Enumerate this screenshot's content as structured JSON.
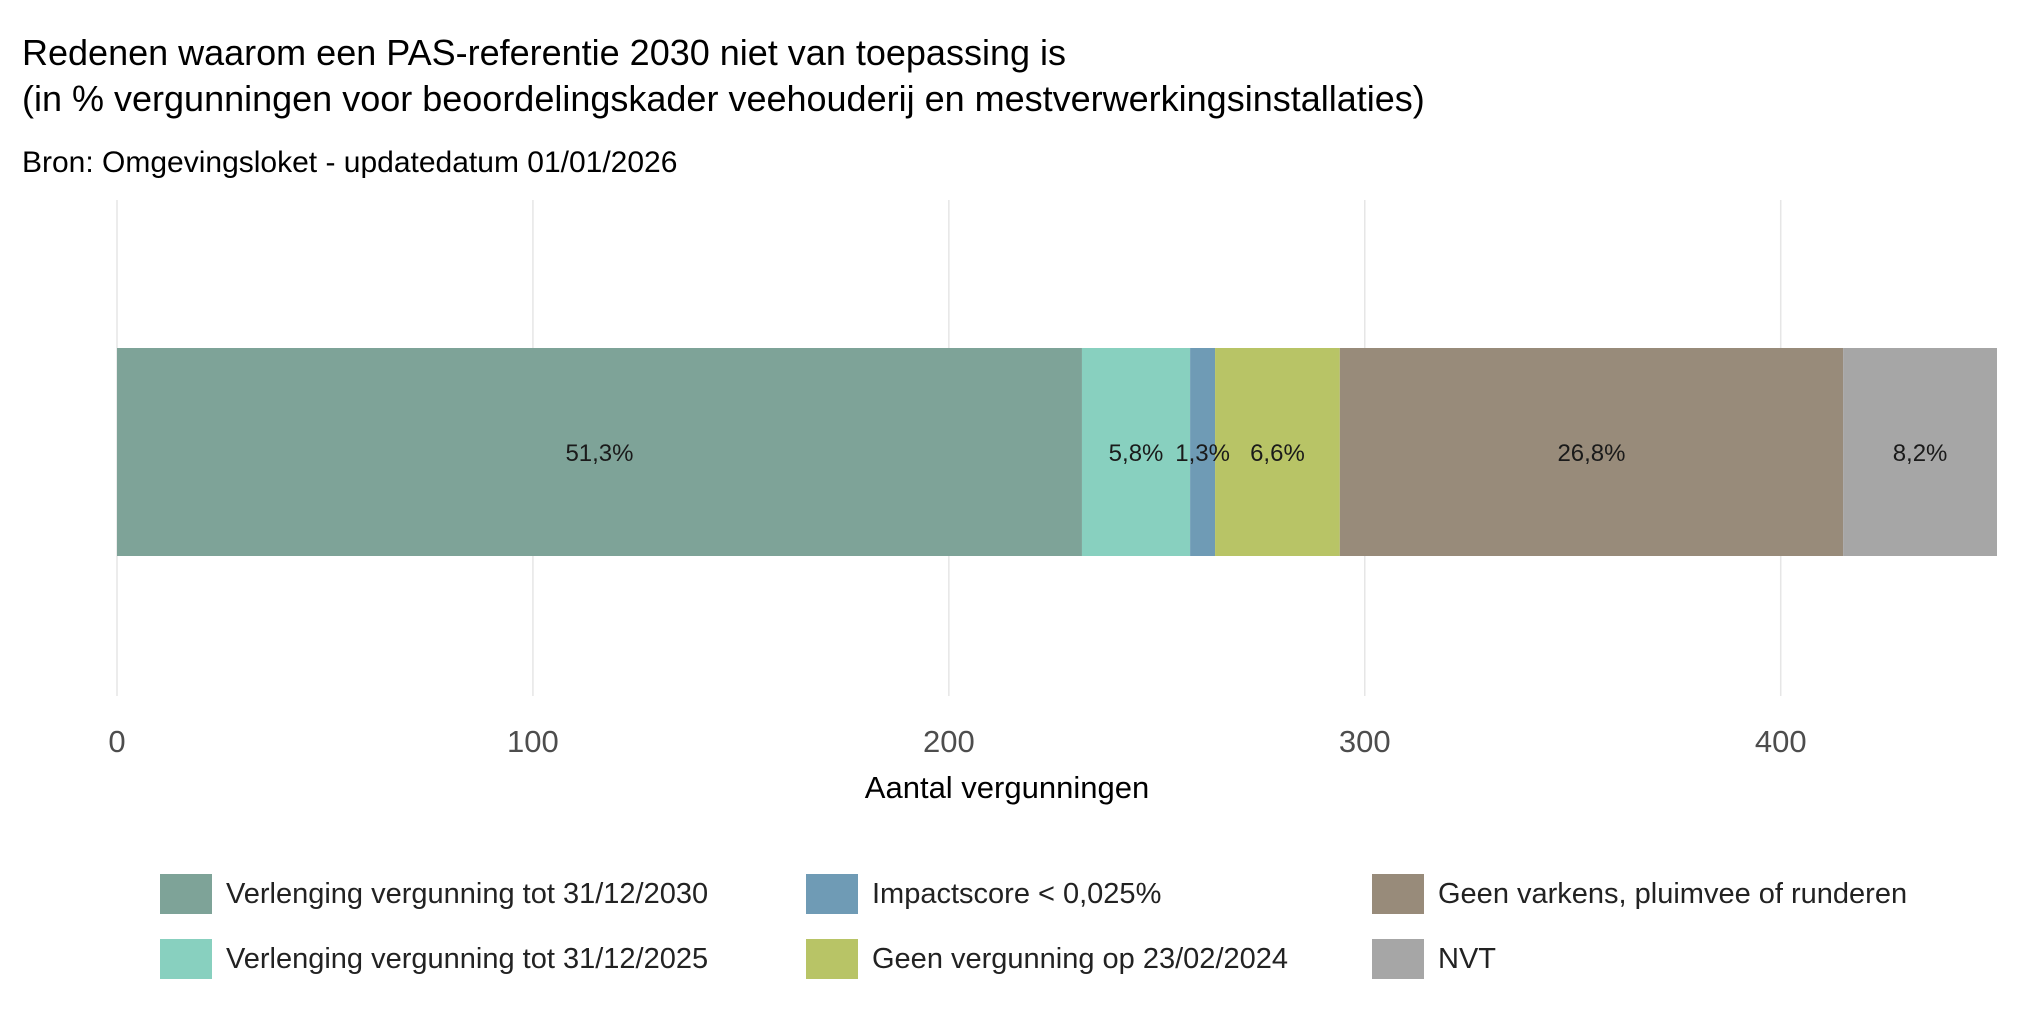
{
  "chart_data": {
    "type": "bar",
    "orientation": "horizontal",
    "stacked": true,
    "title": "Redenen waarom een PAS-referentie 2030 niet van toepassing is",
    "title_line2": "(in % vergunningen voor beoordelingskader veehouderij en mestverwerkingsinstallaties)",
    "subtitle": "Bron: Omgevingsloket - updatedatum 01/01/2026",
    "xlabel": "Aantal vergunningen",
    "ylabel": "",
    "xlim": [
      0,
      452
    ],
    "xticks": [
      "0",
      "100",
      "200",
      "300",
      "400"
    ],
    "grid": true,
    "legend_position": "bottom",
    "series": [
      {
        "name": "Verlenging vergunning tot 31/12/2030",
        "value": 232,
        "label": "51,3%",
        "color": "#7ea398"
      },
      {
        "name": "Verlenging vergunning tot 31/12/2025",
        "value": 26,
        "label": "5,8%",
        "color": "#88d0bf"
      },
      {
        "name": "Impactscore < 0,025%",
        "value": 6,
        "label": "1,3%",
        "color": "#6f9bb5"
      },
      {
        "name": "Geen vergunning op 23/02/2024",
        "value": 30,
        "label": "6,6%",
        "color": "#b8c466"
      },
      {
        "name": "Geen varkens, pluimvee of runderen",
        "value": 121,
        "label": "26,8%",
        "color": "#988b7a"
      },
      {
        "name": "NVT",
        "value": 37,
        "label": "8,2%",
        "color": "#a6a6a6"
      }
    ]
  }
}
